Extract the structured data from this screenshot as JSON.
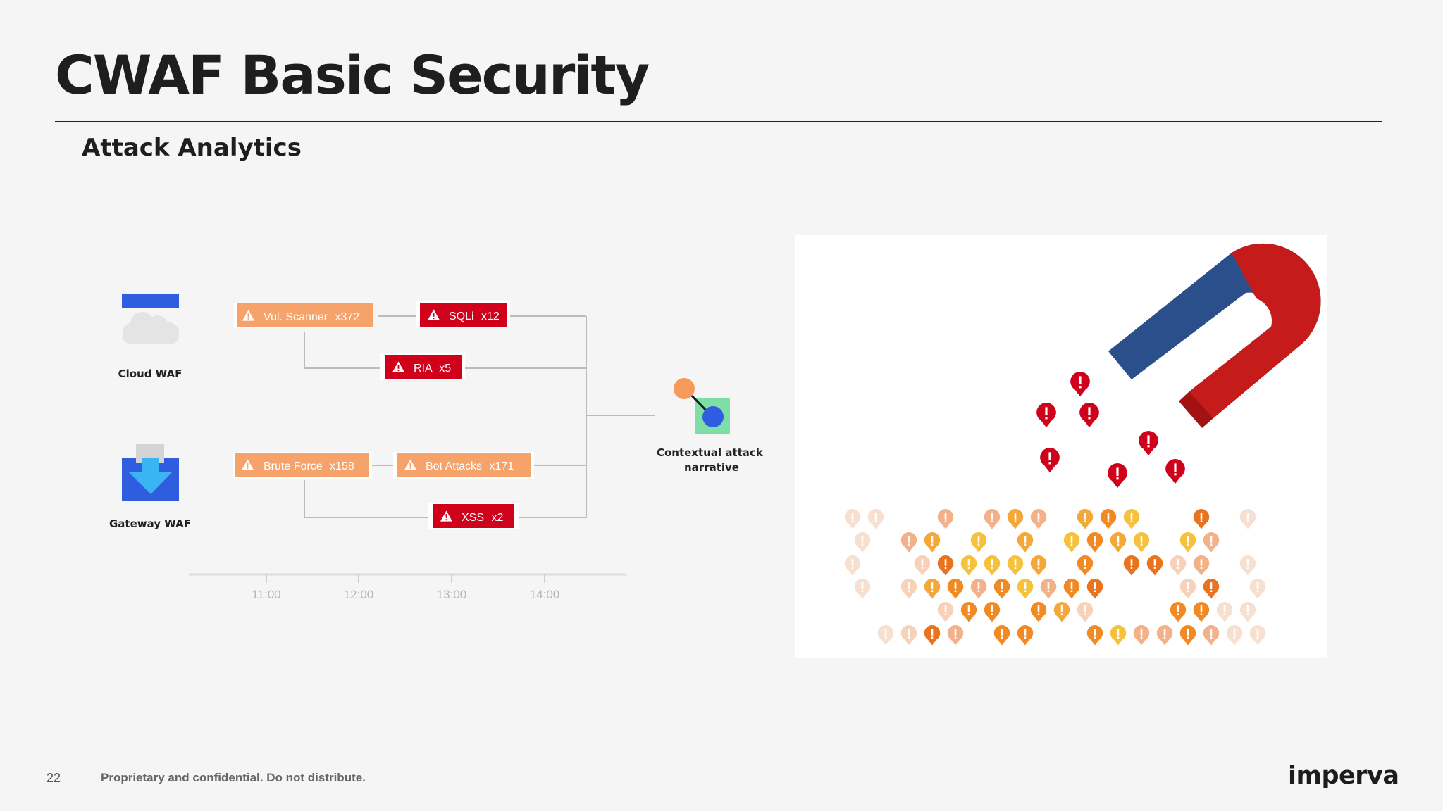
{
  "slide": {
    "title": "CWAF Basic Security",
    "subtitle": "Attack Analytics",
    "page_number": "22",
    "confidential_note": "Proprietary and confidential. Do not distribute.",
    "logo_text": "imperva"
  },
  "sources": [
    {
      "label": "Cloud WAF",
      "icon": "cloud-icon"
    },
    {
      "label": "Gateway WAF",
      "icon": "download-arrow-icon"
    }
  ],
  "events": [
    {
      "label": "Vul. Scanner",
      "count": "x372",
      "severity": "medium",
      "color": "#f5a36b"
    },
    {
      "label": "SQLi",
      "count": "x12",
      "severity": "high",
      "color": "#d0021b"
    },
    {
      "label": "RIA",
      "count": "x5",
      "severity": "high",
      "color": "#d0021b"
    },
    {
      "label": "Brute Force",
      "count": "x158",
      "severity": "medium",
      "color": "#f5a36b"
    },
    {
      "label": "Bot Attacks",
      "count": "x171",
      "severity": "medium",
      "color": "#f5a36b"
    },
    {
      "label": "XSS",
      "count": "x2",
      "severity": "high",
      "color": "#d0021b"
    }
  ],
  "narrative": {
    "line1": "Contextual attack",
    "line2": "narrative",
    "icon": "graph-node-icon"
  },
  "timeline": {
    "ticks": [
      "11:00",
      "12:00",
      "13:00",
      "14:00"
    ]
  },
  "illustration": {
    "icon": "magnet-icon",
    "alert_icon": "alert-pin-icon"
  }
}
